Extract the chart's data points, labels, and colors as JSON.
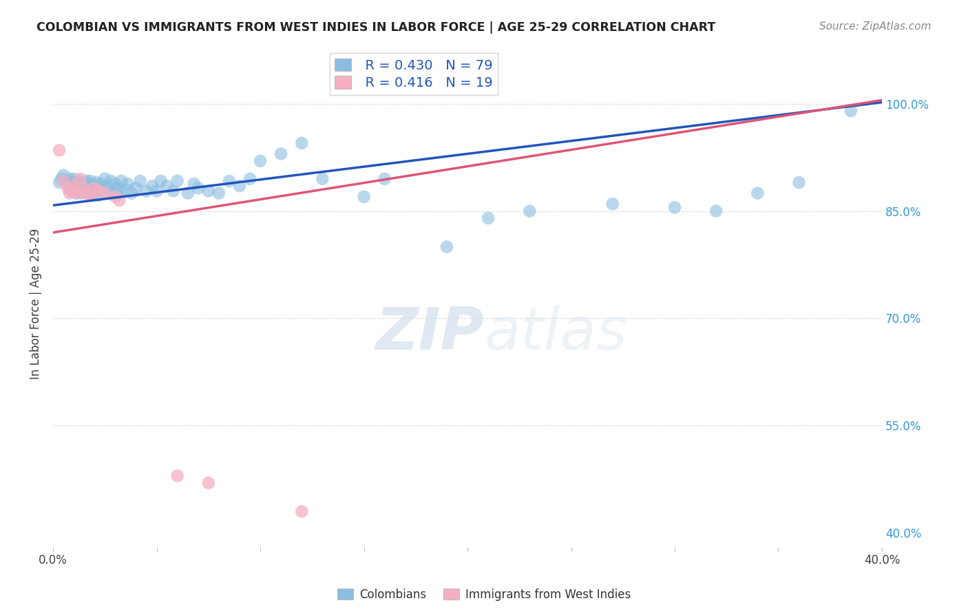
{
  "title": "COLOMBIAN VS IMMIGRANTS FROM WEST INDIES IN LABOR FORCE | AGE 25-29 CORRELATION CHART",
  "source": "Source: ZipAtlas.com",
  "ylabel": "In Labor Force | Age 25-29",
  "xlim": [
    0.0,
    0.4
  ],
  "ylim": [
    0.38,
    1.06
  ],
  "xticks": [
    0.0,
    0.05,
    0.1,
    0.15,
    0.2,
    0.25,
    0.3,
    0.35,
    0.4
  ],
  "yticks": [
    0.4,
    0.55,
    0.7,
    0.85,
    1.0
  ],
  "yticklabels": [
    "40.0%",
    "55.0%",
    "70.0%",
    "85.0%",
    "100.0%"
  ],
  "blue_R": 0.43,
  "blue_N": 79,
  "pink_R": 0.416,
  "pink_N": 19,
  "blue_color": "#8bbde0",
  "pink_color": "#f5afc0",
  "blue_line_color": "#2255bb",
  "pink_line_color": "#dd5577",
  "legend_label_blue": "Colombians",
  "legend_label_pink": "Immigrants from West Indies",
  "watermark_zip": "ZIP",
  "watermark_atlas": "atlas",
  "blue_line_x0": 0.0,
  "blue_line_y0": 0.858,
  "blue_line_x1": 0.4,
  "blue_line_y1": 1.002,
  "pink_line_x0": 0.0,
  "pink_line_y0": 0.82,
  "pink_line_x1": 0.4,
  "pink_line_y1": 1.005,
  "blue_points_x": [
    0.003,
    0.004,
    0.005,
    0.006,
    0.007,
    0.008,
    0.008,
    0.009,
    0.009,
    0.01,
    0.01,
    0.011,
    0.011,
    0.012,
    0.012,
    0.013,
    0.013,
    0.014,
    0.014,
    0.015,
    0.015,
    0.016,
    0.016,
    0.017,
    0.017,
    0.018,
    0.018,
    0.019,
    0.02,
    0.02,
    0.021,
    0.022,
    0.022,
    0.023,
    0.024,
    0.025,
    0.026,
    0.027,
    0.028,
    0.029,
    0.03,
    0.031,
    0.032,
    0.033,
    0.035,
    0.036,
    0.038,
    0.04,
    0.042,
    0.045,
    0.048,
    0.05,
    0.052,
    0.055,
    0.058,
    0.06,
    0.065,
    0.068,
    0.07,
    0.075,
    0.08,
    0.085,
    0.09,
    0.095,
    0.1,
    0.11,
    0.12,
    0.13,
    0.15,
    0.16,
    0.19,
    0.21,
    0.23,
    0.27,
    0.3,
    0.32,
    0.34,
    0.36,
    0.385
  ],
  "blue_points_y": [
    0.89,
    0.895,
    0.9,
    0.892,
    0.888,
    0.882,
    0.895,
    0.885,
    0.878,
    0.89,
    0.895,
    0.882,
    0.875,
    0.888,
    0.878,
    0.892,
    0.88,
    0.885,
    0.875,
    0.888,
    0.878,
    0.892,
    0.882,
    0.888,
    0.875,
    0.882,
    0.892,
    0.878,
    0.885,
    0.875,
    0.89,
    0.882,
    0.872,
    0.888,
    0.88,
    0.895,
    0.885,
    0.878,
    0.892,
    0.875,
    0.888,
    0.882,
    0.878,
    0.892,
    0.88,
    0.888,
    0.875,
    0.882,
    0.892,
    0.878,
    0.885,
    0.878,
    0.892,
    0.885,
    0.878,
    0.892,
    0.875,
    0.888,
    0.882,
    0.878,
    0.875,
    0.892,
    0.885,
    0.895,
    0.92,
    0.93,
    0.945,
    0.895,
    0.87,
    0.895,
    0.8,
    0.84,
    0.85,
    0.86,
    0.855,
    0.85,
    0.875,
    0.89,
    0.99
  ],
  "pink_points_x": [
    0.003,
    0.005,
    0.007,
    0.008,
    0.01,
    0.011,
    0.012,
    0.013,
    0.015,
    0.016,
    0.018,
    0.02,
    0.022,
    0.025,
    0.03,
    0.032,
    0.06,
    0.075,
    0.12
  ],
  "pink_points_y": [
    0.935,
    0.892,
    0.882,
    0.875,
    0.885,
    0.878,
    0.875,
    0.895,
    0.882,
    0.875,
    0.872,
    0.882,
    0.878,
    0.875,
    0.87,
    0.865,
    0.48,
    0.47,
    0.43
  ]
}
